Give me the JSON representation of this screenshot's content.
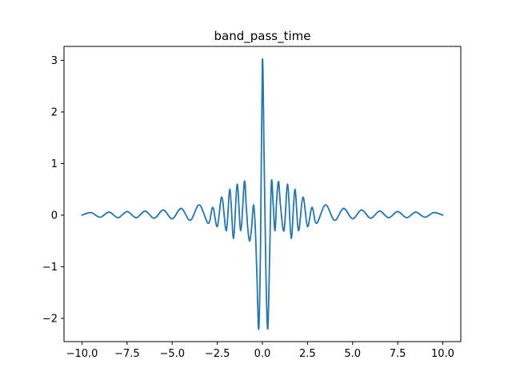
{
  "chart_data": {
    "type": "line",
    "title": "band_pass_time",
    "xlabel": "",
    "ylabel": "",
    "xlim": [
      -11.0,
      11.0
    ],
    "ylim": [
      -2.45,
      3.27
    ],
    "grid": false,
    "legend": "none",
    "line_color": "#1f77b4",
    "x_ticks": [
      {
        "value": -10.0,
        "label": "−10.0"
      },
      {
        "value": -7.5,
        "label": "−7.5"
      },
      {
        "value": -5.0,
        "label": "−5.0"
      },
      {
        "value": -2.5,
        "label": "−2.5"
      },
      {
        "value": 0.0,
        "label": "0.0"
      },
      {
        "value": 2.5,
        "label": "2.5"
      },
      {
        "value": 5.0,
        "label": "5.0"
      },
      {
        "value": 7.5,
        "label": "7.5"
      },
      {
        "value": 10.0,
        "label": "10.0"
      }
    ],
    "y_ticks": [
      {
        "value": -2,
        "label": "−2"
      },
      {
        "value": -1,
        "label": "−1"
      },
      {
        "value": 0,
        "label": "0"
      },
      {
        "value": 1,
        "label": "1"
      },
      {
        "value": 2,
        "label": "2"
      },
      {
        "value": 3,
        "label": "3"
      }
    ],
    "series": [
      {
        "color": "#1f77b4",
        "x": [
          -10.0,
          -9.5,
          -9.0,
          -8.5,
          -8.0,
          -7.5,
          -7.0,
          -6.5,
          -6.0,
          -5.5,
          -5.0,
          -4.5,
          -4.0,
          -3.5,
          -3.0,
          -2.75,
          -2.5,
          -2.25,
          -2.0,
          -1.8,
          -1.6,
          -1.4,
          -1.2,
          -1.0,
          -0.9,
          -0.8,
          -0.7,
          -0.6,
          -0.5,
          -0.4,
          -0.3,
          -0.2,
          -0.1,
          0.0,
          0.1,
          0.2,
          0.3,
          0.4,
          0.5,
          0.6,
          0.7,
          0.8,
          0.9,
          1.0,
          1.2,
          1.4,
          1.6,
          1.8,
          2.0,
          2.25,
          2.5,
          2.75,
          3.0,
          3.5,
          4.0,
          4.5,
          5.0,
          5.5,
          6.0,
          6.5,
          7.0,
          7.5,
          8.0,
          8.5,
          9.0,
          9.5,
          10.0
        ],
        "y": [
          0.0,
          0.05,
          -0.04,
          0.06,
          -0.05,
          0.07,
          -0.05,
          0.08,
          -0.06,
          0.1,
          -0.07,
          0.13,
          -0.1,
          0.2,
          -0.16,
          0.15,
          -0.22,
          0.35,
          -0.3,
          0.5,
          -0.45,
          0.6,
          -0.3,
          0.65,
          0.2,
          -0.3,
          -0.5,
          -0.25,
          0.2,
          -0.2,
          -1.2,
          -2.2,
          -0.5,
          3.0,
          1.0,
          -1.2,
          -2.2,
          -0.8,
          0.65,
          0.2,
          -0.3,
          0.35,
          0.65,
          0.2,
          -0.3,
          0.6,
          -0.45,
          0.5,
          -0.3,
          0.35,
          -0.22,
          0.15,
          -0.16,
          0.2,
          -0.1,
          0.13,
          -0.07,
          0.1,
          -0.06,
          0.08,
          -0.05,
          0.07,
          -0.05,
          0.06,
          -0.04,
          0.05,
          0.0
        ]
      }
    ]
  }
}
